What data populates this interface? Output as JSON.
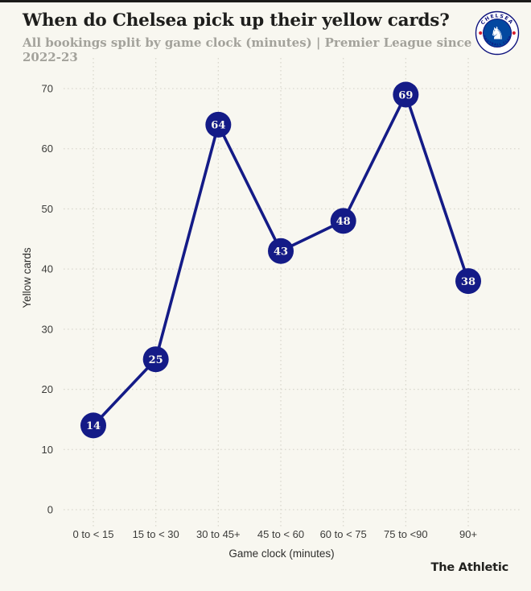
{
  "header": {
    "title": "When do Chelsea pick up their yellow cards?",
    "subtitle": "All bookings split by game clock (minutes) | Premier League since 2022-23"
  },
  "branding": {
    "club_badge": "chelsea-fc-badge",
    "badge_text_top": "CHELSEA",
    "badge_text_bottom": "FOOTBALL CLUB",
    "footer_wordmark": "The Athletic"
  },
  "colors": {
    "background": "#f8f7f0",
    "accent_navy": "#141b87",
    "grid": "#dbd9cf",
    "tick_text": "#3b3b39",
    "axis_title_text": "#2e2e2c",
    "title_text": "#1e1e1c",
    "subtitle_text": "#a3a29b",
    "marker_label_text": "#f8f7f0",
    "chelsea_blue": "#0348a0",
    "chelsea_red": "#d6202f",
    "badge_navy": "#10147e"
  },
  "chart_data": {
    "type": "line",
    "title": "When do Chelsea pick up their yellow cards?",
    "subtitle": "All bookings split by game clock (minutes) | Premier League since 2022-23",
    "categories": [
      "0 to < 15",
      "15 to < 30",
      "30 to 45+",
      "45 to < 60",
      "60 to < 75",
      "75 to <90",
      "90+"
    ],
    "values": [
      14,
      25,
      64,
      43,
      48,
      69,
      38
    ],
    "series_name": "Yellow cards",
    "xlabel": "Game clock (minutes)",
    "ylabel": "Yellow cards",
    "yticks": [
      0,
      10,
      20,
      30,
      40,
      50,
      60,
      70
    ],
    "ylim": [
      0,
      74
    ],
    "grid": "dotted horizontal and vertical",
    "legend": "none",
    "marker_style": "filled navy circles with white value labels"
  }
}
